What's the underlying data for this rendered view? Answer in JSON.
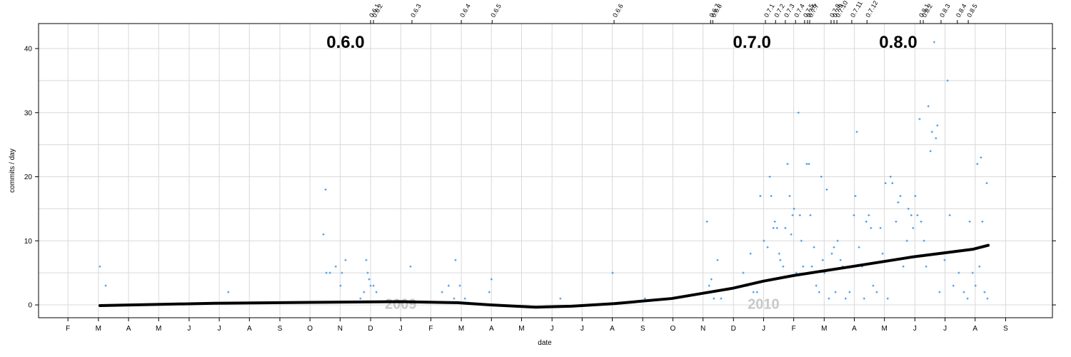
{
  "chart_data": {
    "type": "scatter",
    "xlabel": "date",
    "ylabel": "commits / day",
    "xlim": [
      2008.002,
      2010.796
    ],
    "ylim": [
      -2,
      43.9
    ],
    "yticks": [
      0,
      10,
      20,
      30,
      40
    ],
    "ygrid": [
      0,
      5,
      10,
      15,
      20,
      25,
      30,
      35,
      40
    ],
    "grid": true,
    "xticks": [
      {
        "value": 2008.083,
        "label": "F"
      },
      {
        "value": 2008.167,
        "label": "M"
      },
      {
        "value": 2008.25,
        "label": "A"
      },
      {
        "value": 2008.333,
        "label": "M"
      },
      {
        "value": 2008.417,
        "label": "J"
      },
      {
        "value": 2008.5,
        "label": "J"
      },
      {
        "value": 2008.583,
        "label": "A"
      },
      {
        "value": 2008.667,
        "label": "S"
      },
      {
        "value": 2008.75,
        "label": "O"
      },
      {
        "value": 2008.833,
        "label": "N"
      },
      {
        "value": 2008.917,
        "label": "D"
      },
      {
        "value": 2009,
        "label": "J"
      },
      {
        "value": 2009.083,
        "label": "F"
      },
      {
        "value": 2009.167,
        "label": "M"
      },
      {
        "value": 2009.25,
        "label": "A"
      },
      {
        "value": 2009.333,
        "label": "M"
      },
      {
        "value": 2009.417,
        "label": "J"
      },
      {
        "value": 2009.5,
        "label": "J"
      },
      {
        "value": 2009.583,
        "label": "A"
      },
      {
        "value": 2009.667,
        "label": "S"
      },
      {
        "value": 2009.75,
        "label": "O"
      },
      {
        "value": 2009.833,
        "label": "N"
      },
      {
        "value": 2009.917,
        "label": "D"
      },
      {
        "value": 2010,
        "label": "J"
      },
      {
        "value": 2010.083,
        "label": "F"
      },
      {
        "value": 2010.167,
        "label": "M"
      },
      {
        "value": 2010.25,
        "label": "A"
      },
      {
        "value": 2010.333,
        "label": "M"
      },
      {
        "value": 2010.417,
        "label": "J"
      },
      {
        "value": 2010.5,
        "label": "J"
      },
      {
        "value": 2010.583,
        "label": "A"
      },
      {
        "value": 2010.667,
        "label": "S"
      }
    ],
    "x2ticks": [
      {
        "value": 2008.917,
        "label": "0.6.1"
      },
      {
        "value": 2008.925,
        "label": "0.6.2"
      },
      {
        "value": 2009.031,
        "label": "0.6.3"
      },
      {
        "value": 2009.167,
        "label": "0.6.4"
      },
      {
        "value": 2009.252,
        "label": "0.6.5"
      },
      {
        "value": 2009.588,
        "label": "0.6.6"
      },
      {
        "value": 2009.854,
        "label": "0.6.7"
      },
      {
        "value": 2009.86,
        "label": "0.6.8"
      },
      {
        "value": 2010.005,
        "label": "0.7.1"
      },
      {
        "value": 2010.033,
        "label": "0.7.2"
      },
      {
        "value": 2010.06,
        "label": "0.7.3"
      },
      {
        "value": 2010.088,
        "label": "0.7.4"
      },
      {
        "value": 2010.113,
        "label": "0.7.5"
      },
      {
        "value": 2010.121,
        "label": "0.7.6"
      },
      {
        "value": 2010.127,
        "label": "0.7.7"
      },
      {
        "value": 2010.186,
        "label": "0.7.8"
      },
      {
        "value": 2010.194,
        "label": "0.7.9"
      },
      {
        "value": 2010.202,
        "label": "0.7.10"
      },
      {
        "value": 2010.243,
        "label": "0.7.11"
      },
      {
        "value": 2010.285,
        "label": "0.7.12"
      },
      {
        "value": 2010.432,
        "label": "0.8.1"
      },
      {
        "value": 2010.44,
        "label": "0.8.2"
      },
      {
        "value": 2010.489,
        "label": "0.8.3"
      },
      {
        "value": 2010.534,
        "label": "0.8.4"
      },
      {
        "value": 2010.564,
        "label": "0.8.5"
      }
    ],
    "annotations": [
      {
        "text": "0.6.0",
        "x": 2008.848,
        "y": 41,
        "color": "#000000",
        "style": "major"
      },
      {
        "text": "0.7.0",
        "x": 2009.968,
        "y": 41,
        "color": "#000000",
        "style": "major"
      },
      {
        "text": "0.8.0",
        "x": 2010.371,
        "y": 41,
        "color": "#000000",
        "style": "major"
      },
      {
        "text": "2009",
        "x": 2009.0,
        "y": 0.2,
        "color": "#c8c8c8",
        "style": "year"
      },
      {
        "text": "2010",
        "x": 2010.0,
        "y": 0.2,
        "color": "#c8c8c8",
        "style": "year"
      }
    ],
    "series": [
      {
        "type": "scatter",
        "color": "#2f8fe8",
        "x": [
          2008.171,
          2008.187,
          2008.525,
          2008.787,
          2008.793,
          2008.795,
          2008.805,
          2008.821,
          2008.834,
          2008.838,
          2008.848,
          2008.889,
          2008.899,
          2008.905,
          2008.909,
          2008.913,
          2008.917,
          2008.925,
          2008.933,
          2009.027,
          2009.114,
          2009.132,
          2009.147,
          2009.151,
          2009.163,
          2009.177,
          2009.244,
          2009.25,
          2009.44,
          2009.584,
          2009.673,
          2009.844,
          2009.85,
          2009.856,
          2009.863,
          2009.873,
          2009.883,
          2009.944,
          2009.954,
          2009.964,
          2009.972,
          2009.982,
          2009.991,
          2010.001,
          2010.011,
          2010.017,
          2010.021,
          2010.027,
          2010.031,
          2010.037,
          2010.043,
          2010.046,
          2010.054,
          2010.06,
          2010.066,
          2010.072,
          2010.076,
          2010.08,
          2010.084,
          2010.09,
          2010.096,
          2010.1,
          2010.104,
          2010.109,
          2010.119,
          2010.125,
          2010.129,
          2010.133,
          2010.139,
          2010.145,
          2010.153,
          2010.159,
          2010.163,
          2010.168,
          2010.174,
          2010.18,
          2010.188,
          2010.194,
          2010.198,
          2010.204,
          2010.212,
          2010.218,
          2010.226,
          2010.237,
          2010.249,
          2010.253,
          2010.257,
          2010.263,
          2010.271,
          2010.277,
          2010.283,
          2010.29,
          2010.296,
          2010.302,
          2010.312,
          2010.322,
          2010.328,
          2010.336,
          2010.342,
          2010.35,
          2010.355,
          2010.365,
          2010.371,
          2010.377,
          2010.385,
          2010.395,
          2010.399,
          2010.407,
          2010.412,
          2010.418,
          2010.424,
          2010.43,
          2010.434,
          2010.442,
          2010.448,
          2010.454,
          2010.46,
          2010.464,
          2010.47,
          2010.475,
          2010.479,
          2010.485,
          2010.493,
          2010.499,
          2010.507,
          2010.513,
          2010.523,
          2010.538,
          2010.552,
          2010.562,
          2010.568,
          2010.576,
          2010.584,
          2010.589,
          2010.595,
          2010.599,
          2010.603,
          2010.609,
          2010.615,
          2010.617
        ],
        "values": [
          6,
          3,
          2,
          11,
          18,
          5,
          5,
          6,
          3,
          5,
          7,
          1,
          2,
          7,
          5,
          4,
          3,
          3,
          2,
          6,
          2,
          3,
          1,
          7,
          3,
          1,
          2,
          4,
          1,
          5,
          1,
          13,
          3,
          4,
          1,
          7,
          1,
          5,
          3,
          8,
          2,
          2,
          17,
          10,
          9,
          20,
          17,
          12,
          13,
          12,
          8,
          7,
          6,
          12,
          22,
          17,
          11,
          14,
          15,
          5,
          30,
          14,
          10,
          6,
          22,
          22,
          14,
          6,
          9,
          3,
          2,
          20,
          7,
          5,
          18,
          1,
          8,
          9,
          2,
          10,
          7,
          6,
          1,
          2,
          14,
          17,
          27,
          9,
          6,
          1,
          13,
          14,
          12,
          3,
          2,
          12,
          8,
          19,
          1,
          20,
          19,
          13,
          16,
          17,
          6,
          10,
          15,
          14,
          12,
          17,
          14,
          29,
          13,
          10,
          6,
          31,
          24,
          27,
          41,
          26,
          28,
          2,
          8,
          7,
          35,
          14,
          3,
          5,
          2,
          1,
          13,
          5,
          3,
          22,
          6,
          23,
          13,
          2,
          19,
          1
        ]
      },
      {
        "type": "line",
        "color": "#000000",
        "x": [
          2008.171,
          2008.486,
          2008.748,
          2008.998,
          2009.155,
          2009.246,
          2009.372,
          2009.47,
          2009.588,
          2009.747,
          2009.915,
          2009.999,
          2010.084,
          2010.245,
          2010.412,
          2010.578,
          2010.619
        ],
        "values": [
          -0.1,
          0.25,
          0.4,
          0.5,
          0.35,
          0.0,
          -0.35,
          -0.2,
          0.2,
          1.0,
          2.6,
          3.7,
          4.6,
          6.0,
          7.5,
          8.7,
          9.3
        ]
      }
    ]
  }
}
